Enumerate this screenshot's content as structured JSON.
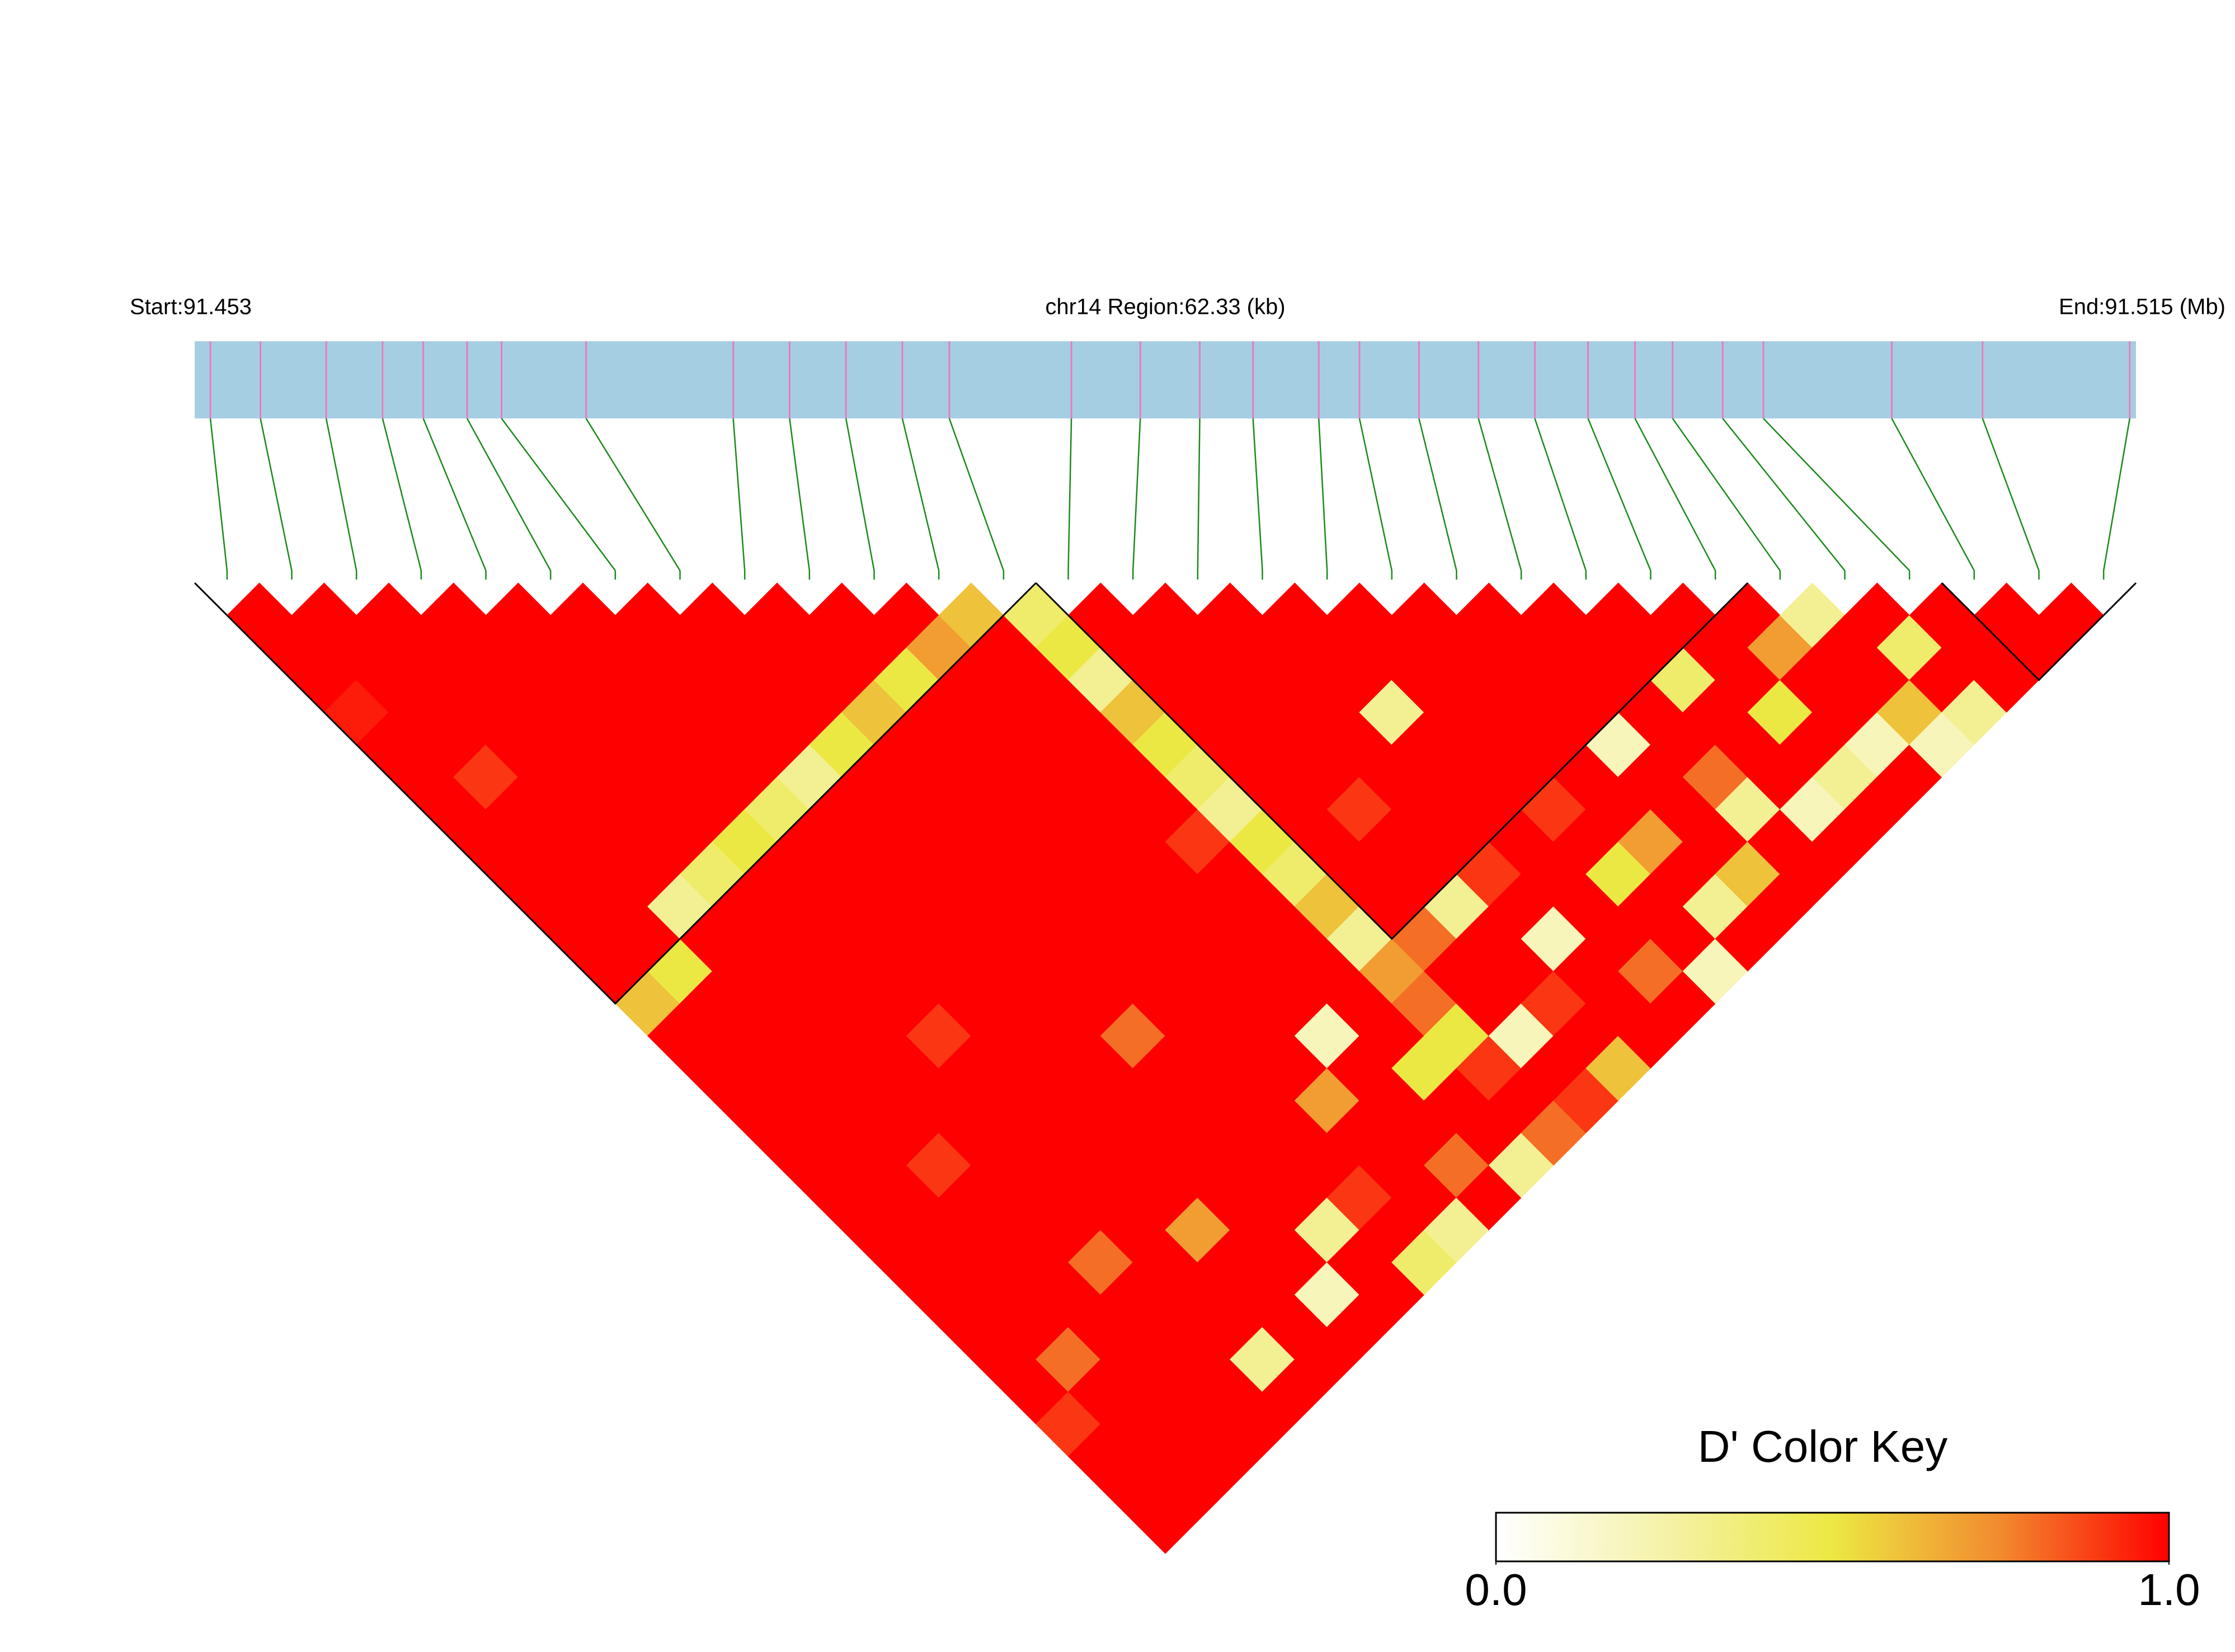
{
  "chart_data": {
    "type": "ld_heatmap",
    "start_label": "Start:91.453",
    "region_label": "chr14 Region:62.33 (kb)",
    "end_label": "End:91.515 (Mb)",
    "xlim": [
      91.453,
      91.515
    ],
    "positions": [
      91.4535,
      91.4551,
      91.4572,
      91.459,
      91.4603,
      91.4617,
      91.4628,
      91.4655,
      91.4702,
      91.472,
      91.4738,
      91.4756,
      91.4771,
      91.481,
      91.4832,
      91.4851,
      91.4868,
      91.4889,
      91.4902,
      91.4921,
      91.494,
      91.4958,
      91.4975,
      91.499,
      91.5002,
      91.5018,
      91.5031,
      91.5072,
      91.5101,
      91.5148
    ],
    "dprime": [
      [
        1,
        1,
        1,
        0.95,
        1,
        1,
        1,
        1,
        1,
        1,
        1,
        1,
        0.6,
        1,
        1,
        1,
        1,
        1,
        1,
        1,
        1,
        1,
        1,
        1,
        1,
        0.9,
        1,
        1,
        1
      ],
      [
        1,
        1,
        1,
        1,
        1,
        0.9,
        1,
        1,
        1,
        1,
        1,
        0.5,
        1,
        1,
        1,
        1,
        1,
        1,
        1,
        1,
        1,
        1,
        1,
        0.8,
        1,
        1,
        1,
        1
      ],
      [
        1,
        1,
        1,
        1,
        1,
        1,
        1,
        1,
        1,
        0.3,
        1,
        1,
        1,
        1,
        1,
        1,
        1,
        0.9,
        1,
        1,
        1,
        1,
        1,
        1,
        1,
        1,
        1
      ],
      [
        1,
        1,
        1,
        1,
        1,
        1,
        1,
        1,
        0.4,
        1,
        1,
        1,
        1,
        1,
        1,
        1,
        1,
        1,
        1,
        1,
        0.8,
        1,
        1,
        1,
        1,
        1
      ],
      [
        1,
        1,
        1,
        1,
        1,
        1,
        1,
        0.5,
        1,
        1,
        1,
        1,
        1,
        0.9,
        1,
        1,
        1,
        1,
        1,
        1,
        1,
        1,
        1,
        0.3,
        1
      ],
      [
        1,
        1,
        1,
        1,
        1,
        1,
        0.4,
        1,
        1,
        1,
        1,
        1,
        1,
        1,
        1,
        1,
        1,
        1,
        1,
        0.7,
        1,
        1,
        1,
        1
      ],
      [
        1,
        1,
        1,
        1,
        1,
        0.3,
        1,
        1,
        1,
        1,
        1,
        1,
        1,
        1,
        1,
        1,
        1,
        1,
        1,
        1,
        1,
        0.2,
        1
      ],
      [
        1,
        1,
        1,
        1,
        0.5,
        1,
        1,
        1,
        1,
        1,
        1,
        1,
        1,
        0.8,
        1,
        1,
        1,
        1,
        1,
        0.3,
        1,
        1
      ],
      [
        1,
        1,
        1,
        0.6,
        1,
        1,
        1,
        1,
        1,
        1,
        1,
        1,
        1,
        1,
        1,
        1,
        1,
        1,
        0.9,
        1,
        0.4
      ],
      [
        1,
        1,
        0.5,
        1,
        1,
        1,
        1,
        1,
        1,
        1,
        1,
        1,
        1,
        1,
        1,
        0.7,
        1,
        1,
        1,
        0.3
      ],
      [
        1,
        0.7,
        1,
        1,
        1,
        1,
        1,
        1,
        1,
        1,
        1,
        1,
        1,
        0.2,
        1,
        1,
        1,
        0.8,
        1
      ],
      [
        0.6,
        1,
        1,
        1,
        1,
        1,
        1,
        0.9,
        1,
        1,
        1,
        1,
        1,
        1,
        0.5,
        1,
        1,
        0.3
      ],
      [
        0.4,
        0.5,
        0.3,
        0.6,
        0.5,
        0.4,
        0.3,
        0.5,
        0.4,
        0.6,
        0.3,
        0.7,
        0.8,
        0.5,
        0.9,
        1,
        0.8
      ],
      [
        1,
        1,
        1,
        1,
        1,
        1,
        1,
        1,
        1,
        1,
        0.8,
        1,
        1,
        0.2,
        1,
        0.9
      ],
      [
        1,
        1,
        1,
        1,
        1,
        1,
        0.9,
        1,
        1,
        0.3,
        1,
        1,
        0.9,
        1,
        0.6
      ],
      [
        1,
        1,
        1,
        1,
        1,
        1,
        1,
        1,
        0.9,
        1,
        0.2,
        1,
        1,
        1
      ],
      [
        1,
        1,
        1,
        0.3,
        1,
        1,
        1,
        1,
        1,
        1,
        1,
        0.8,
        1
      ],
      [
        1,
        1,
        1,
        1,
        1,
        1,
        0.9,
        1,
        0.5,
        1,
        1,
        0.2
      ],
      [
        1,
        1,
        1,
        1,
        1,
        1,
        1,
        0.7,
        1,
        0.3,
        1
      ],
      [
        1,
        1,
        1,
        1,
        0.2,
        1,
        1,
        1,
        0.6,
        1
      ],
      [
        1,
        1,
        1,
        1,
        1,
        0.8,
        0.3,
        1,
        1
      ],
      [
        1,
        1,
        0.4,
        1,
        1,
        1,
        0.2,
        1
      ],
      [
        1,
        1,
        1,
        0.5,
        1,
        0.3,
        1
      ],
      [
        1,
        0.7,
        1,
        1,
        0.2,
        1
      ],
      [
        0.3,
        1,
        1,
        0.6,
        0.2
      ],
      [
        1,
        0.4,
        1,
        0.3
      ],
      [
        1,
        1,
        1
      ],
      [
        1,
        1
      ],
      [
        1
      ]
    ],
    "blocks": [
      [
        0,
        12
      ],
      [
        13,
        23
      ],
      [
        27,
        29
      ]
    ],
    "bar_color": "#a6cee3",
    "snp_tick_color": "#e87dbb",
    "connector_color": "#1a8a1a",
    "colormap": [
      "#ffffff",
      "#f5f2a8",
      "#ece843",
      "#f28a2e",
      "#ff0000"
    ],
    "legend_title": "D' Color Key",
    "legend_ticks": [
      {
        "value": 0,
        "label": "0.0"
      },
      {
        "value": 1,
        "label": "1.0"
      }
    ]
  }
}
